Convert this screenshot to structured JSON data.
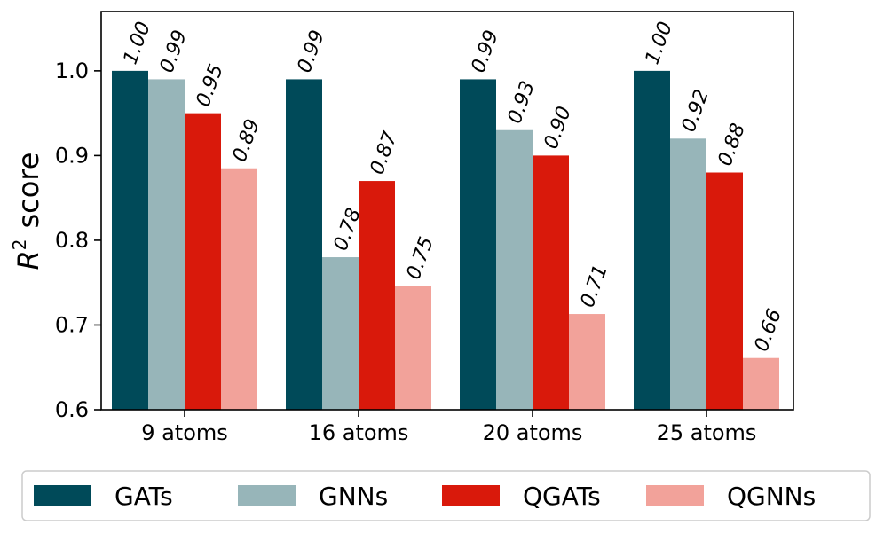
{
  "chart_data": {
    "type": "bar",
    "title": "",
    "xlabel": "",
    "ylabel": "score",
    "ylabel_base": "R",
    "ylabel_sup": "2",
    "ylim": [
      0.6,
      1.07
    ],
    "yticks": [
      0.6,
      0.7,
      0.8,
      0.9,
      1.0
    ],
    "ytick_labels": [
      "0.6",
      "0.7",
      "0.8",
      "0.9",
      "1.0"
    ],
    "categories": [
      "9 atoms",
      "16 atoms",
      "20 atoms",
      "25 atoms"
    ],
    "series": [
      {
        "name": "GATs",
        "color": "#004a59",
        "values": [
          1.0,
          0.99,
          0.99,
          1.0
        ],
        "labels": [
          "1.00",
          "0.99",
          "0.99",
          "1.00"
        ]
      },
      {
        "name": "GNNs",
        "color": "#97b5b9",
        "values": [
          0.99,
          0.78,
          0.93,
          0.92
        ],
        "labels": [
          "0.99",
          "0.78",
          "0.93",
          "0.92"
        ]
      },
      {
        "name": "QGATs",
        "color": "#d9190b",
        "values": [
          0.95,
          0.87,
          0.9,
          0.88
        ],
        "labels": [
          "0.95",
          "0.87",
          "0.90",
          "0.88"
        ]
      },
      {
        "name": "QGNNs",
        "color": "#f2a29a",
        "values": [
          0.885,
          0.746,
          0.713,
          0.661
        ],
        "labels": [
          "0.89",
          "0.75",
          "0.71",
          "0.66"
        ]
      }
    ],
    "legend": {
      "placement": "bottom",
      "entries": [
        "GATs",
        "GNNs",
        "QGATs",
        "QGNNs"
      ]
    }
  }
}
